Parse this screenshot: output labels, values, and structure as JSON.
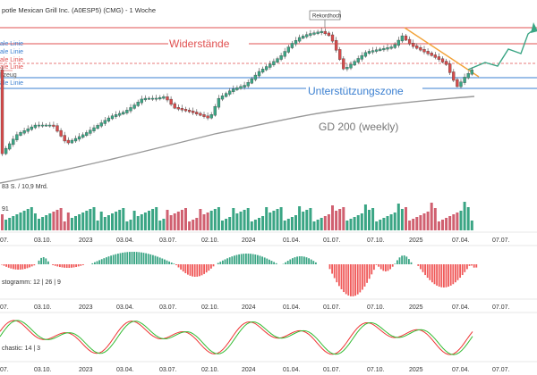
{
  "header": {
    "title": "potle Mexican Grill Inc. (A0ESP5) (CMG) - 1 Woche"
  },
  "colors": {
    "resistance": "#e05050",
    "support": "#3a7fd0",
    "trend": "#f2a33a",
    "projection": "#3aa584",
    "ma": "#999999",
    "up": "#3aa584",
    "down": "#d64b4b",
    "hist_neg": "#f05a5a",
    "stoch_k": "#33bb33",
    "stoch_d": "#ee3333"
  },
  "chart_data": [
    {
      "type": "line",
      "panel": "price",
      "annotations": {
        "widerstaende": "Widerstände",
        "unterstuetzungszone": "Unterstützungszone",
        "ma_label": "GD 200 (weekly)",
        "rekordhoch": "Rekordhoch"
      },
      "left_labels": [
        "ale Linie",
        "ale Linie",
        "ale Linie",
        "ale Linie",
        "kzeug",
        "ale Linie"
      ],
      "x_tick_labels": [
        "07.",
        "03.10.",
        "2023",
        "03.04.",
        "03.07.",
        "02.10.",
        "2024",
        "01.04.",
        "01.07.",
        "07.10.",
        "2025",
        "07.04.",
        "07.07."
      ]
    },
    {
      "type": "bar",
      "panel": "volume",
      "label": "83 S. / 10,9 Mrd.",
      "partial_label": "91",
      "x_tick_labels": [
        "07.",
        "03.10.",
        "2023",
        "03.04.",
        "03.07.",
        "02.10.",
        "2024",
        "01.04.",
        "01.07.",
        "07.10.",
        "2025",
        "07.04.",
        "07.07."
      ]
    },
    {
      "type": "bar",
      "panel": "macd_histogram",
      "label": "stogramm: 12 | 26 | 9",
      "x_tick_labels": [
        "07.",
        "03.10.",
        "2023",
        "03.04.",
        "03.07.",
        "02.10.",
        "2024",
        "01.04.",
        "01.07.",
        "07.10.",
        "2025",
        "07.04.",
        "07.07."
      ]
    },
    {
      "type": "line",
      "panel": "stochastic",
      "label": "chastic: 14 | 3",
      "x_tick_labels": [
        "07.",
        "03.10.",
        "2023",
        "03.04.",
        "03.07.",
        "02.10.",
        "2024",
        "01.04.",
        "01.07.",
        "07.10.",
        "2025",
        "07.04.",
        "07.07."
      ]
    }
  ]
}
